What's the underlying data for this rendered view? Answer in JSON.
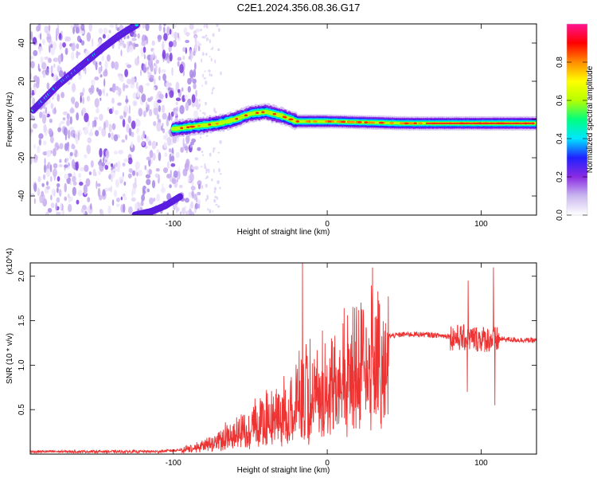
{
  "title": "C2E1.2024.356.08.36.G17",
  "chart_data": [
    {
      "type": "heatmap",
      "xlabel": "Height of straight line (km)",
      "ylabel": "Frequency (Hz)",
      "xlim": [
        -193,
        136
      ],
      "ylim": [
        -50,
        50
      ],
      "xticks": [
        "-100",
        "0",
        "100"
      ],
      "yticks": [
        "40",
        "20",
        "0",
        "-20",
        "-40"
      ],
      "colorbar": {
        "label": "Normalized spectral amplitude",
        "ticks": [
          "0.0",
          "0.2",
          "0.4",
          "0.6",
          "0.8"
        ],
        "range": [
          0,
          1
        ],
        "colors": [
          "#ffffff",
          "#c9b8ef",
          "#8a2be2",
          "#2020ff",
          "#00e5ff",
          "#00ff7f",
          "#b6ff00",
          "#ffff00",
          "#ff8c00",
          "#ff0000",
          "#ff1493"
        ]
      },
      "features": [
        {
          "name": "upper-branch",
          "x": [
            -191,
            -175,
            -160,
            -145,
            -135,
            -123
          ],
          "y": [
            5,
            18,
            28,
            38,
            44,
            50
          ]
        },
        {
          "name": "lower-branch",
          "x": [
            -125,
            -114,
            -105,
            -95
          ],
          "y": [
            -50,
            -48,
            -45,
            -40
          ]
        },
        {
          "name": "main-trace",
          "x": [
            -100,
            -90,
            -80,
            -70,
            -60,
            -50,
            -40,
            -30,
            -20,
            0,
            50,
            100,
            136
          ],
          "y": [
            -5,
            -4,
            -3,
            -2,
            0,
            3,
            4,
            2,
            -1,
            -1,
            -2,
            -2,
            -2
          ]
        }
      ]
    },
    {
      "type": "line",
      "xlabel": "Height of straight line (km)",
      "ylabel": "SNR (10 * v/v)",
      "multiplier": "(x10^4)",
      "xlim": [
        -193,
        136
      ],
      "ylim": [
        0,
        2.15
      ],
      "xticks": [
        "-100",
        "0",
        "100"
      ],
      "yticks": [
        "0.5",
        "1.0",
        "1.5",
        "2.0"
      ],
      "color": "#ee3333",
      "envelope": {
        "x": [
          -193,
          -110,
          -95,
          -80,
          -70,
          -60,
          -50,
          -40,
          -30,
          -20,
          -10,
          0,
          10,
          20,
          30,
          40,
          50,
          60,
          70,
          80,
          90,
          100,
          110,
          120,
          136
        ],
        "y": [
          0.03,
          0.03,
          0.05,
          0.1,
          0.18,
          0.25,
          0.35,
          0.45,
          0.55,
          0.68,
          0.8,
          0.92,
          1.05,
          1.18,
          1.28,
          1.33,
          1.35,
          1.35,
          1.34,
          1.33,
          1.32,
          1.31,
          1.3,
          1.29,
          1.28
        ]
      },
      "spikes": [
        {
          "x": -16,
          "y": 2.15
        },
        {
          "x": 91,
          "y": 0.7
        },
        {
          "x": 91.5,
          "y": 1.95
        },
        {
          "x": 108,
          "y": 2.1
        },
        {
          "x": 109,
          "y": 0.55
        }
      ]
    }
  ]
}
